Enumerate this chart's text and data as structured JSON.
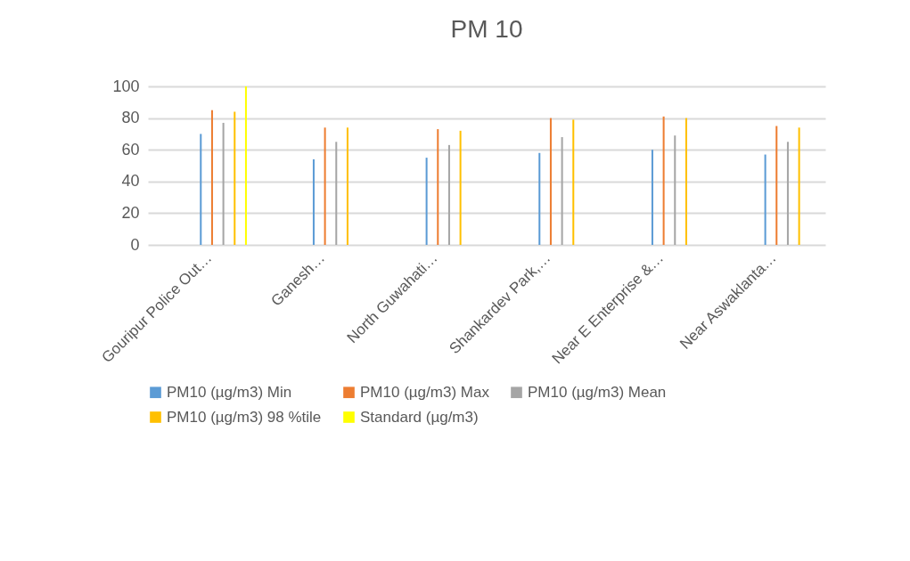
{
  "chart_data": {
    "type": "bar",
    "title": "PM 10",
    "categories": [
      "Gouripur Police Out…",
      "Ganesh…",
      "North Guwahati…",
      "Shankardev Park,…",
      "Near E Enterprise &…",
      "Near Aswaklanta…"
    ],
    "series": [
      {
        "name": "PM10 (µg/m3) Min",
        "color": "#5b9bd5",
        "values": [
          70,
          54,
          55,
          58,
          60,
          57
        ]
      },
      {
        "name": "PM10 (µg/m3) Max",
        "color": "#ed7d31",
        "values": [
          85,
          74,
          73,
          80,
          81,
          75
        ]
      },
      {
        "name": "PM10 (µg/m3) Mean",
        "color": "#a5a5a5",
        "values": [
          77,
          65,
          63,
          68,
          69,
          65
        ]
      },
      {
        "name": "PM10 (µg/m3) 98 %tile",
        "color": "#ffc000",
        "values": [
          84,
          74,
          72,
          79,
          80,
          74
        ]
      },
      {
        "name": "Standard (µg/m3)",
        "color": "#ffff00",
        "values": [
          100,
          null,
          null,
          null,
          null,
          null
        ]
      }
    ],
    "ylim": [
      0,
      100
    ],
    "yticks": [
      0,
      20,
      40,
      60,
      80,
      100
    ],
    "grid": "y",
    "legend": "bottom"
  }
}
